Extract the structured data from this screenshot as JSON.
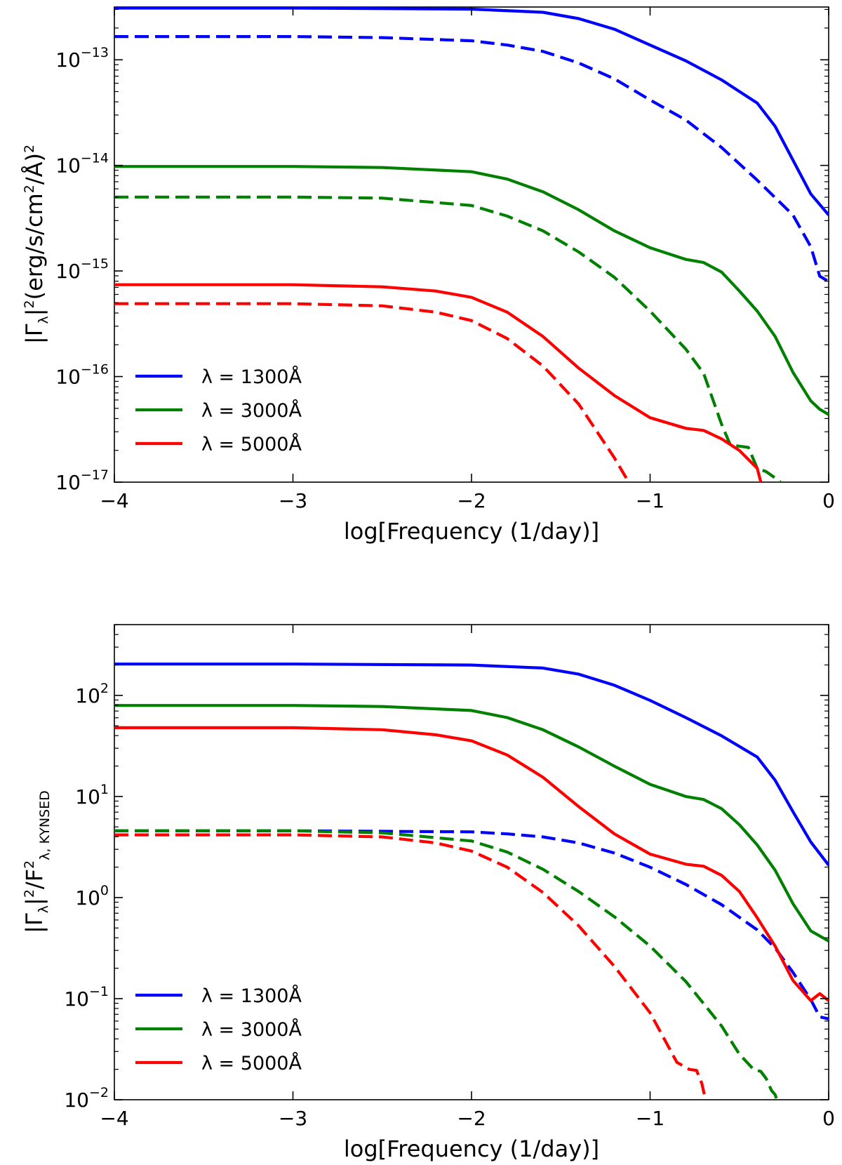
{
  "chart_data": [
    {
      "type": "line",
      "xlabel": "log[Frequency (1/day)]",
      "ylabel": "|Γλ|²(erg/s/cm²/Å)²",
      "ylabel_parts": {
        "base": "|Γ",
        "lambda": "λ",
        "sq1": "2",
        "mid": "(erg/s/cm",
        "sq2": "2",
        "unit": "/Å)",
        "sq3": "2"
      },
      "xlim": [
        -4,
        0
      ],
      "ylim_log10": [
        -17,
        -12.5
      ],
      "yscale": "log",
      "x_ticks": [
        -4,
        -3,
        -2,
        -1,
        0
      ],
      "x_tick_labels": [
        "−4",
        "−3",
        "−2",
        "−1",
        "0"
      ],
      "y_ticks_log10": [
        -13,
        -14,
        -15,
        -16,
        -17
      ],
      "y_tick_labels": [
        "10",
        "10",
        "10",
        "10",
        "10"
      ],
      "y_tick_exponents": [
        "−13",
        "−14",
        "−15",
        "−16",
        "−17"
      ],
      "legend_position": "lower-left",
      "legend": [
        {
          "label": "λ = 1300Å",
          "color": "#0000ff"
        },
        {
          "label": "λ = 3000Å",
          "color": "#008000"
        },
        {
          "label": "λ = 5000Å",
          "color": "#ff0000"
        }
      ],
      "series": [
        {
          "name": "λ = 1300Å (solid)",
          "color": "#0000ff",
          "dash": false,
          "x": [
            -4,
            -3,
            -2,
            -1.6,
            -1.4,
            -1.2,
            -1,
            -0.8,
            -0.6,
            -0.4,
            -0.3,
            -0.2,
            -0.1,
            0
          ],
          "log10_y": [
            -12.51,
            -12.51,
            -12.52,
            -12.55,
            -12.61,
            -12.71,
            -12.86,
            -13.01,
            -13.19,
            -13.41,
            -13.63,
            -13.95,
            -14.27,
            -14.47
          ]
        },
        {
          "name": "λ = 1300Å (dashed)",
          "color": "#0000ff",
          "dash": true,
          "x": [
            -4,
            -3,
            -2.5,
            -2,
            -1.8,
            -1.6,
            -1.4,
            -1.2,
            -1,
            -0.8,
            -0.6,
            -0.4,
            -0.2,
            -0.1,
            -0.05,
            0
          ],
          "log10_y": [
            -12.78,
            -12.78,
            -12.79,
            -12.82,
            -12.86,
            -12.92,
            -13.03,
            -13.18,
            -13.38,
            -13.57,
            -13.83,
            -14.14,
            -14.47,
            -14.77,
            -15.05,
            -15.1
          ]
        },
        {
          "name": "λ = 3000Å (solid)",
          "color": "#008000",
          "dash": false,
          "x": [
            -4,
            -3,
            -2.5,
            -2,
            -1.8,
            -1.6,
            -1.4,
            -1.2,
            -1,
            -0.8,
            -0.7,
            -0.6,
            -0.5,
            -0.4,
            -0.3,
            -0.2,
            -0.1,
            -0.05,
            0
          ],
          "log10_y": [
            -14.01,
            -14.01,
            -14.02,
            -14.06,
            -14.13,
            -14.25,
            -14.42,
            -14.62,
            -14.78,
            -14.89,
            -14.92,
            -15.01,
            -15.19,
            -15.38,
            -15.62,
            -15.96,
            -16.23,
            -16.31,
            -16.36
          ]
        },
        {
          "name": "λ = 3000Å (dashed)",
          "color": "#008000",
          "dash": true,
          "x": [
            -4,
            -3,
            -2.5,
            -2,
            -1.8,
            -1.6,
            -1.4,
            -1.2,
            -1,
            -0.8,
            -0.7,
            -0.6,
            -0.55,
            -0.5,
            -0.45,
            -0.4,
            -0.35,
            -0.3,
            -0.27
          ],
          "log10_y": [
            -14.3,
            -14.3,
            -14.31,
            -14.38,
            -14.48,
            -14.62,
            -14.82,
            -15.06,
            -15.38,
            -15.74,
            -15.97,
            -16.45,
            -16.65,
            -16.66,
            -16.67,
            -16.87,
            -16.9,
            -16.96,
            -17.0
          ]
        },
        {
          "name": "λ = 5000Å (solid)",
          "color": "#ff0000",
          "dash": false,
          "x": [
            -4,
            -3,
            -2.5,
            -2.2,
            -2,
            -1.8,
            -1.6,
            -1.4,
            -1.2,
            -1,
            -0.8,
            -0.7,
            -0.6,
            -0.5,
            -0.4,
            -0.38
          ],
          "log10_y": [
            -15.13,
            -15.13,
            -15.15,
            -15.19,
            -15.25,
            -15.39,
            -15.62,
            -15.92,
            -16.18,
            -16.39,
            -16.49,
            -16.51,
            -16.59,
            -16.7,
            -16.87,
            -17.0
          ]
        },
        {
          "name": "λ = 5000Å (dashed)",
          "color": "#ff0000",
          "dash": true,
          "x": [
            -4,
            -3,
            -2.5,
            -2.2,
            -2,
            -1.8,
            -1.6,
            -1.4,
            -1.2,
            -1.12
          ],
          "log10_y": [
            -15.31,
            -15.31,
            -15.33,
            -15.39,
            -15.47,
            -15.64,
            -15.9,
            -16.26,
            -16.77,
            -17.0
          ]
        }
      ]
    },
    {
      "type": "line",
      "xlabel": "log[Frequency (1/day)]",
      "ylabel": "|Γλ|²/F²λ,KYNSED",
      "ylabel_parts": {
        "base": "|Γ",
        "lambda": "λ",
        "sq1": "2",
        "mid": "/F",
        "sq2": "2",
        "sub2": "λ, KYNSED"
      },
      "xlim": [
        -4,
        0
      ],
      "ylim_log10": [
        -2,
        2.7
      ],
      "yscale": "log",
      "x_ticks": [
        -4,
        -3,
        -2,
        -1,
        0
      ],
      "x_tick_labels": [
        "−4",
        "−3",
        "−2",
        "−1",
        "0"
      ],
      "y_ticks_log10": [
        2,
        1,
        0,
        -1,
        -2
      ],
      "y_tick_labels": [
        "10",
        "10",
        "10",
        "10",
        "10"
      ],
      "y_tick_exponents": [
        "2",
        "1",
        "0",
        "−1",
        "−2"
      ],
      "legend_position": "lower-left",
      "legend": [
        {
          "label": "λ = 1300Å",
          "color": "#0000ff"
        },
        {
          "label": "λ = 3000Å",
          "color": "#008000"
        },
        {
          "label": "λ = 5000Å",
          "color": "#ff0000"
        }
      ],
      "series": [
        {
          "name": "λ = 1300Å (solid)",
          "color": "#0000ff",
          "dash": false,
          "x": [
            -4,
            -3,
            -2,
            -1.6,
            -1.4,
            -1.2,
            -1,
            -0.8,
            -0.6,
            -0.4,
            -0.3,
            -0.2,
            -0.1,
            0
          ],
          "log10_y": [
            2.31,
            2.31,
            2.3,
            2.27,
            2.21,
            2.1,
            1.95,
            1.78,
            1.6,
            1.39,
            1.16,
            0.85,
            0.55,
            0.32
          ]
        },
        {
          "name": "λ = 1300Å (dashed)",
          "color": "#0000ff",
          "dash": true,
          "x": [
            -4,
            -3,
            -2,
            -1.8,
            -1.6,
            -1.4,
            -1.2,
            -1,
            -0.8,
            -0.6,
            -0.4,
            -0.3,
            -0.2,
            -0.1,
            -0.05,
            0
          ],
          "log10_y": [
            0.66,
            0.66,
            0.65,
            0.63,
            0.6,
            0.54,
            0.44,
            0.3,
            0.13,
            -0.07,
            -0.32,
            -0.5,
            -0.74,
            -1.01,
            -1.18,
            -1.2
          ]
        },
        {
          "name": "λ = 3000Å (solid)",
          "color": "#008000",
          "dash": false,
          "x": [
            -4,
            -3,
            -2.5,
            -2,
            -1.8,
            -1.6,
            -1.4,
            -1.2,
            -1,
            -0.8,
            -0.7,
            -0.6,
            -0.5,
            -0.4,
            -0.3,
            -0.2,
            -0.1,
            -0.05,
            0
          ],
          "log10_y": [
            1.9,
            1.9,
            1.89,
            1.85,
            1.78,
            1.66,
            1.49,
            1.3,
            1.12,
            1.0,
            0.97,
            0.88,
            0.72,
            0.52,
            0.27,
            -0.06,
            -0.33,
            -0.38,
            -0.43
          ]
        },
        {
          "name": "λ = 3000Å (dashed)",
          "color": "#008000",
          "dash": true,
          "x": [
            -4,
            -3,
            -2.5,
            -2,
            -1.8,
            -1.6,
            -1.4,
            -1.2,
            -1,
            -0.8,
            -0.6,
            -0.5,
            -0.42,
            -0.38,
            -0.35,
            -0.32,
            -0.3,
            -0.29
          ],
          "log10_y": [
            0.66,
            0.66,
            0.64,
            0.56,
            0.45,
            0.28,
            0.06,
            -0.19,
            -0.48,
            -0.83,
            -1.27,
            -1.55,
            -1.7,
            -1.72,
            -1.79,
            -1.91,
            -1.95,
            -2.0
          ]
        },
        {
          "name": "λ = 5000Å (solid)",
          "color": "#ff0000",
          "dash": false,
          "x": [
            -4,
            -3,
            -2.5,
            -2.2,
            -2,
            -1.8,
            -1.6,
            -1.4,
            -1.2,
            -1,
            -0.8,
            -0.7,
            -0.6,
            -0.5,
            -0.4,
            -0.3,
            -0.2,
            -0.1,
            -0.05,
            0
          ],
          "log10_y": [
            1.68,
            1.68,
            1.66,
            1.61,
            1.55,
            1.41,
            1.19,
            0.9,
            0.63,
            0.43,
            0.33,
            0.31,
            0.22,
            0.06,
            -0.2,
            -0.48,
            -0.82,
            -1.02,
            -0.95,
            -1.02
          ]
        },
        {
          "name": "λ = 5000Å (dashed)",
          "color": "#ff0000",
          "dash": true,
          "x": [
            -4,
            -3,
            -2.5,
            -2.2,
            -2,
            -1.8,
            -1.6,
            -1.4,
            -1.2,
            -1,
            -0.85,
            -0.78,
            -0.74,
            -0.71,
            -0.69
          ],
          "log10_y": [
            0.62,
            0.62,
            0.6,
            0.54,
            0.46,
            0.3,
            0.05,
            -0.28,
            -0.68,
            -1.14,
            -1.63,
            -1.7,
            -1.71,
            -1.84,
            -2.0
          ]
        }
      ]
    }
  ]
}
